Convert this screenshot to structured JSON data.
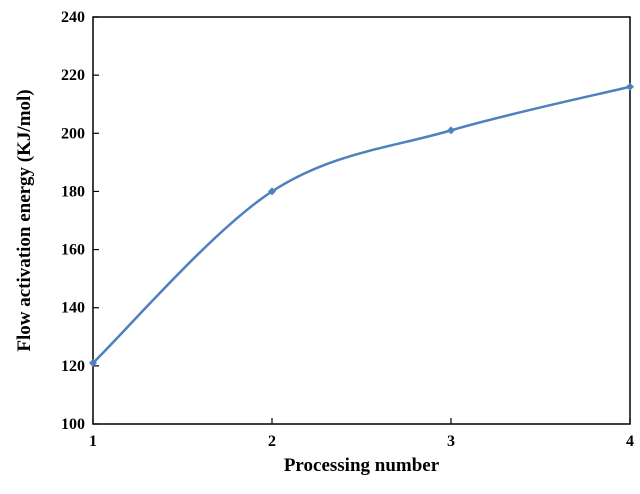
{
  "chart_data": {
    "type": "line",
    "title": "",
    "xlabel": "Processing number",
    "ylabel": "Flow activation energy (KJ/mol)",
    "xlim": [
      1,
      4
    ],
    "ylim": [
      100,
      240
    ],
    "x_ticks": [
      1,
      2,
      3,
      4
    ],
    "y_ticks": [
      100,
      120,
      140,
      160,
      180,
      200,
      220,
      240
    ],
    "grid": false,
    "legend": "none",
    "series": [
      {
        "color": "#4f81bd",
        "x": [
          1,
          2,
          3,
          4
        ],
        "y": [
          121,
          180,
          201,
          216
        ]
      }
    ]
  }
}
